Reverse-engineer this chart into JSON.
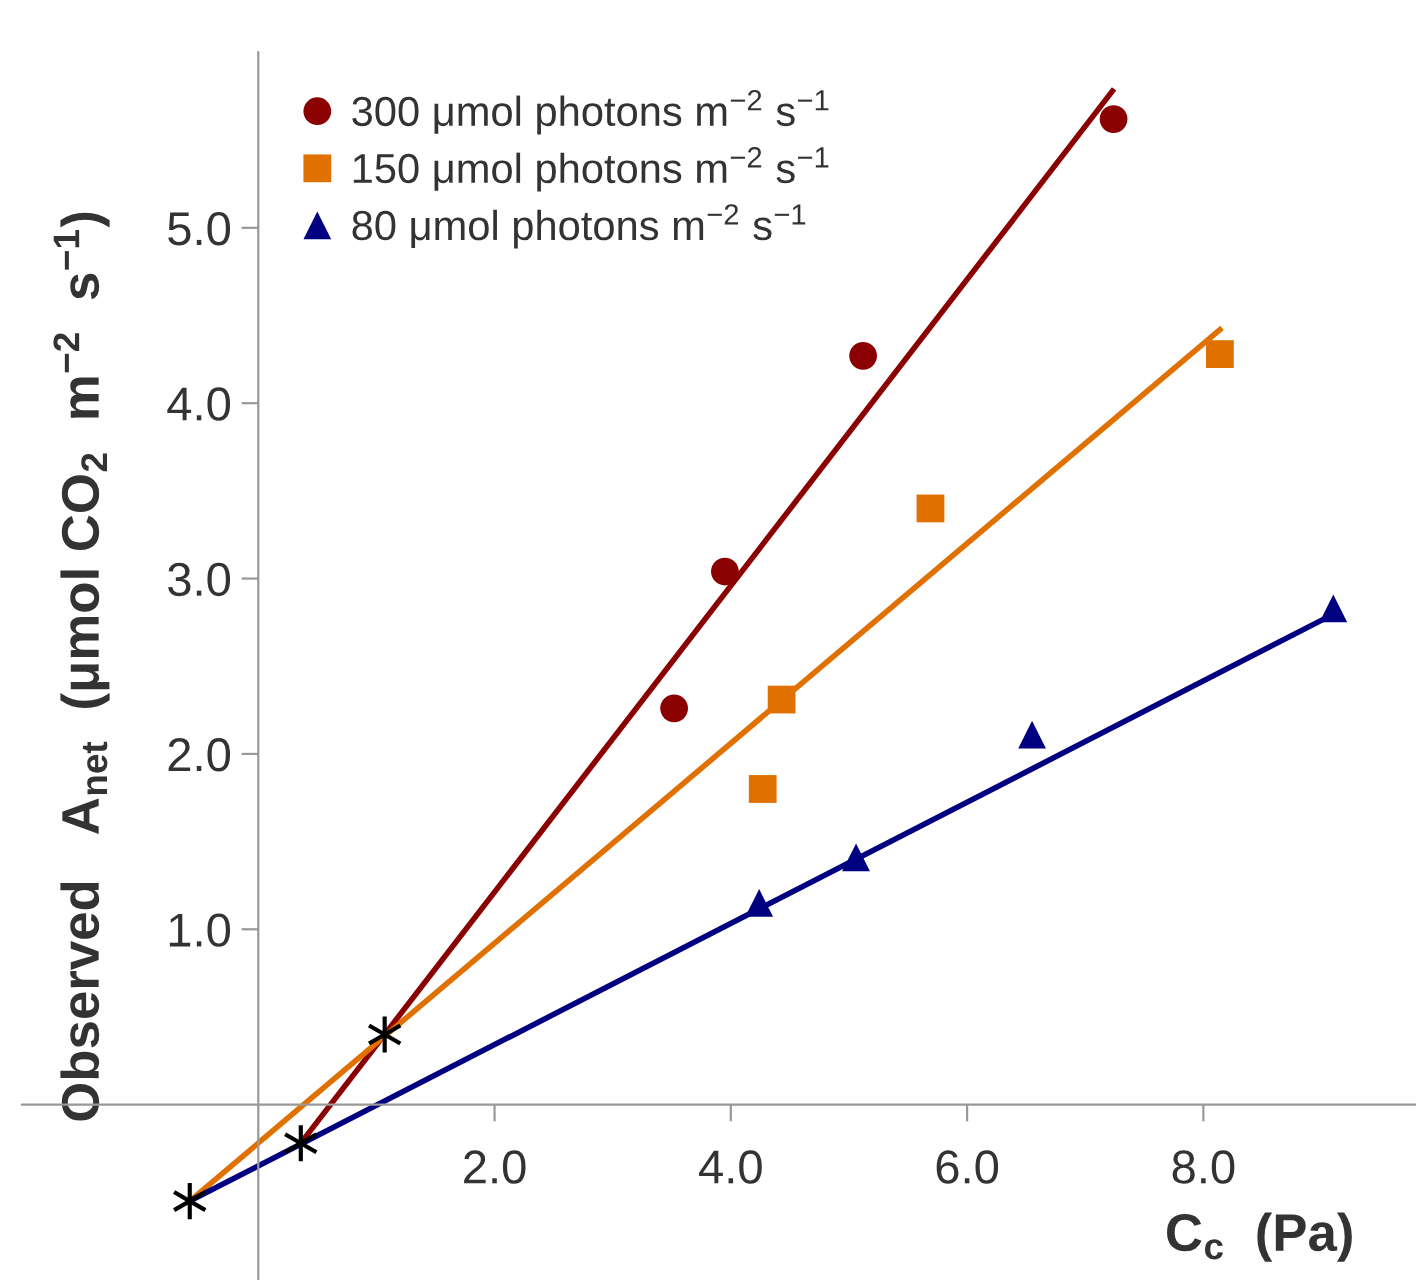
{
  "chart_data": {
    "type": "scatter",
    "xlabel": "C$_{c}$  (Pa)",
    "ylabel": "Observed   A$_{net}$  (μmol CO$_{2}$  m$^{−2}$  s$^{−1}$)",
    "xlim": [
      -2.0,
      9.8
    ],
    "ylim": [
      -1.0,
      6.0
    ],
    "xticks": [
      {
        "value": 2,
        "label": "2.0"
      },
      {
        "value": 4,
        "label": "4.0"
      },
      {
        "value": 6,
        "label": "6.0"
      },
      {
        "value": 8,
        "label": "8.0"
      }
    ],
    "yticks": [
      {
        "value": 1,
        "label": "1.0"
      },
      {
        "value": 2,
        "label": "2.0"
      },
      {
        "value": 3,
        "label": "3.0"
      },
      {
        "value": 4,
        "label": "4.0"
      },
      {
        "value": 5,
        "label": "5.0"
      }
    ],
    "grid": false,
    "legend": "top left",
    "series": [
      {
        "name": "300 μmol photons m$^{−2}$ s$^{−1}$",
        "color": "#8b0000",
        "marker": "circle",
        "x": [
          3.52,
          3.95,
          5.12,
          7.24
        ],
        "values": [
          2.26,
          3.04,
          4.27,
          5.62
        ]
      },
      {
        "name": "150 μmol photons m$^{−2}$ s$^{−1}$",
        "color": "#e07000",
        "marker": "square",
        "x": [
          4.27,
          4.43,
          5.69,
          8.14
        ],
        "values": [
          1.8,
          2.31,
          3.4,
          4.28
        ]
      },
      {
        "name": "80 μmol photons m$^{−2}$ s$^{−1}$",
        "color": "#000080",
        "marker": "triangle",
        "x": [
          4.24,
          5.06,
          6.55,
          9.1
        ],
        "values": [
          1.15,
          1.41,
          2.11,
          2.83
        ]
      },
      {
        "type": "line",
        "color": "#8b0000",
        "x": [
          0.36,
          7.23
        ],
        "values": [
          -0.22,
          5.78
        ]
      },
      {
        "type": "line",
        "color": "#e07000",
        "x": [
          -0.58,
          8.14
        ],
        "values": [
          -0.55,
          4.42
        ]
      },
      {
        "type": "line",
        "color": "#000080",
        "x": [
          -0.58,
          9.11
        ],
        "values": [
          -0.55,
          2.8
        ]
      },
      {
        "color": "#000000",
        "marker": "cross",
        "x": [
          -0.58,
          0.36,
          1.07
        ],
        "values": [
          -0.55,
          -0.22,
          0.4
        ]
      }
    ]
  }
}
